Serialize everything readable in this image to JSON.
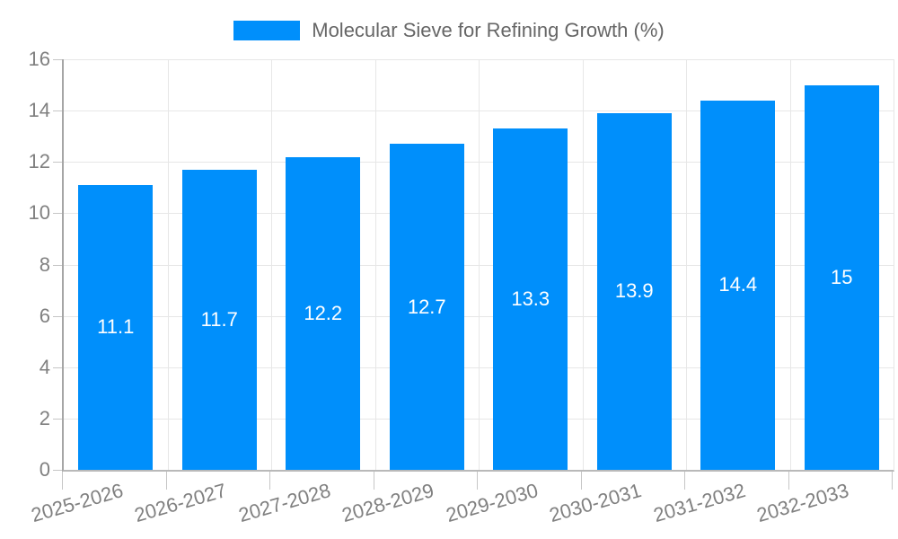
{
  "legend": {
    "label": "Molecular Sieve for Refining Growth (%)"
  },
  "chart_data": {
    "type": "bar",
    "title": "",
    "xlabel": "",
    "ylabel": "",
    "categories": [
      "2025-2026",
      "2026-2027",
      "2027-2028",
      "2028-2029",
      "2029-2030",
      "2030-2031",
      "2031-2032",
      "2032-2033"
    ],
    "series": [
      {
        "name": "Molecular Sieve for Refining Growth (%)",
        "values": [
          11.1,
          11.7,
          12.2,
          12.7,
          13.3,
          13.9,
          14.4,
          15
        ]
      }
    ],
    "value_labels": [
      "11.1",
      "11.7",
      "12.2",
      "12.7",
      "13.3",
      "13.9",
      "14.4",
      "15"
    ],
    "ylim": [
      0,
      16
    ],
    "yticks": [
      0,
      2,
      4,
      6,
      8,
      10,
      12,
      14,
      16
    ],
    "grid": true,
    "legend_position": "top-center",
    "x_label_rotation_deg": -16,
    "colors": {
      "bar": "#008FFB",
      "data_label": "#FFFFFF",
      "axis_tick_text": "#808080",
      "legend_text": "#666666",
      "grid": "#E7E7E7",
      "axis_line": "#A6A6A6",
      "axis_line_bottom": "#B9B9B9",
      "tick_mark": "#C6C6C6",
      "background": "#FFFFFF"
    }
  }
}
